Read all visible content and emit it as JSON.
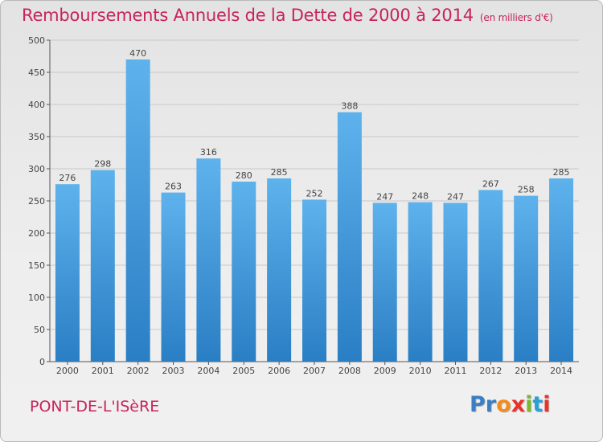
{
  "header": {
    "title": "Remboursements Annuels de la Dette de 2000 à 2014",
    "unit": "(en milliers d'€)"
  },
  "footer": {
    "city": "PONT-DE-L'ISèRE",
    "logo_text": "Proxiti",
    "logo_colors": [
      "#3a7fc4",
      "#3a7fc4",
      "#f28c1e",
      "#e8332a",
      "#7cb92f",
      "#2a9fd8",
      "#e8332a"
    ]
  },
  "colors": {
    "bar_top": "#5eb2ec",
    "bar_bottom": "#2a7ec4",
    "grid": "#c8c8c8",
    "accent": "#c8235a"
  },
  "chart_data": {
    "type": "bar",
    "categories": [
      "2000",
      "2001",
      "2002",
      "2003",
      "2004",
      "2005",
      "2006",
      "2007",
      "2008",
      "2009",
      "2010",
      "2011",
      "2012",
      "2013",
      "2014"
    ],
    "values": [
      276,
      298,
      470,
      263,
      316,
      280,
      285,
      252,
      388,
      247,
      248,
      247,
      267,
      258,
      285
    ],
    "ylim": [
      0,
      500
    ],
    "yticks": [
      0,
      50,
      100,
      150,
      200,
      250,
      300,
      350,
      400,
      450,
      500
    ],
    "grid": true,
    "data_labels": true
  }
}
